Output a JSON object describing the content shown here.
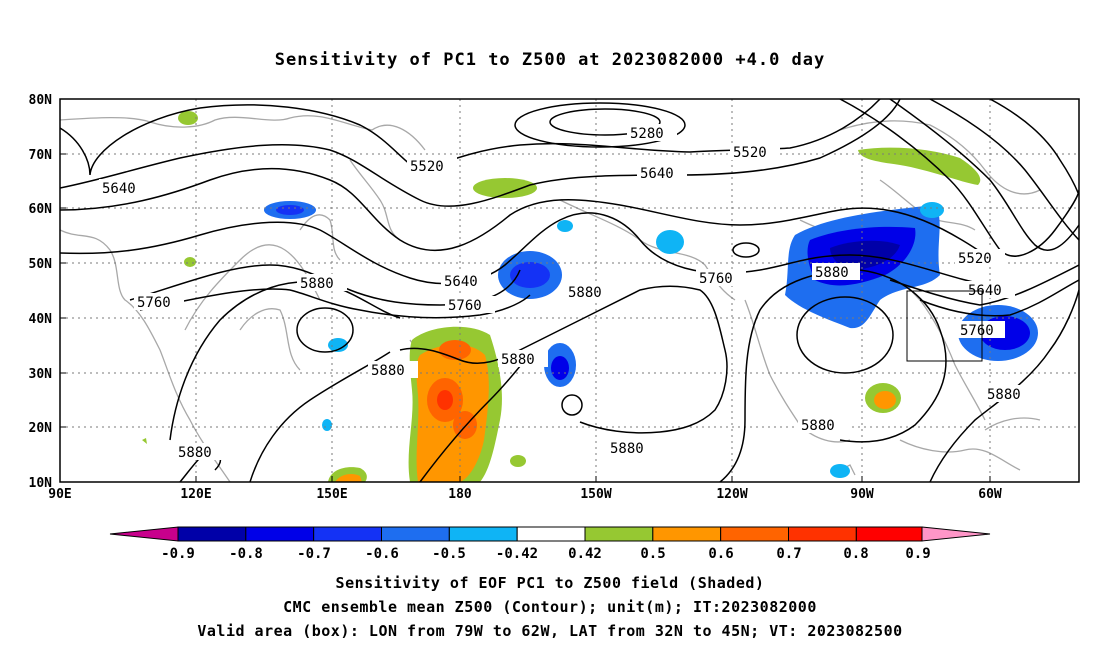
{
  "title": "Sensitivity of PC1 to Z500 at 2023082000 +4.0 day",
  "y_axis_labels": [
    "80N",
    "70N",
    "60N",
    "50N",
    "40N",
    "30N",
    "20N",
    "10N"
  ],
  "x_axis_labels": [
    "90E",
    "120E",
    "150E",
    "180",
    "150W",
    "120W",
    "90W",
    "60W"
  ],
  "contour_labels": [
    "5280",
    "5520",
    "5520",
    "5520",
    "5640",
    "5640",
    "5640",
    "5640",
    "5760",
    "5760",
    "5760",
    "5760",
    "5880",
    "5880",
    "5880",
    "5880",
    "5880",
    "5880",
    "5880",
    "5880",
    "5880"
  ],
  "colorbar": {
    "labels": [
      "-0.9",
      "-0.8",
      "-0.7",
      "-0.6",
      "-0.5",
      "-0.42",
      "0.42",
      "0.5",
      "0.6",
      "0.7",
      "0.8",
      "0.9"
    ],
    "colors": [
      "#c8008c",
      "#0000a8",
      "#0000e8",
      "#1432f5",
      "#1e6ef0",
      "#0fb4f5",
      "#ffffff",
      "#96c832",
      "#ff9600",
      "#ff6400",
      "#ff3200",
      "#ff0000",
      "#ff96c8"
    ]
  },
  "captions": {
    "line1": "Sensitivity of EOF PC1 to Z500 field (Shaded)",
    "line2": "CMC ensemble mean Z500 (Contour); unit(m); IT:2023082000",
    "line3": "Valid area (box): LON from 79W to 62W, LAT from 32N to 45N; VT: 2023082500"
  }
}
